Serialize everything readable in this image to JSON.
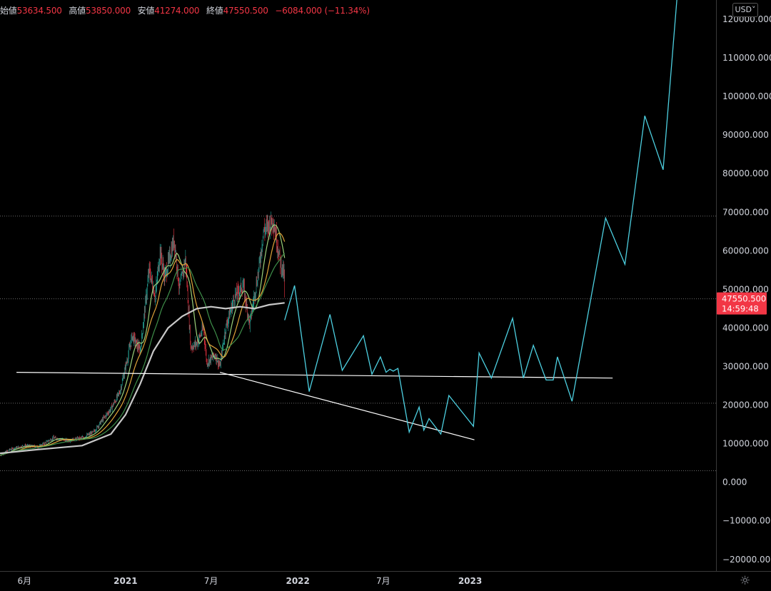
{
  "ohlc": {
    "open_label": "始値",
    "open": "53634.500",
    "high_label": "高値",
    "high": "53850.000",
    "low_label": "安値",
    "low": "41274.000",
    "close_label": "終値",
    "close": "47550.500",
    "change": "−6084.000 (−11.34%)"
  },
  "currency_button": {
    "label": "USD",
    "icon": "chevron-down-icon"
  },
  "settings": {
    "icon": "gear-icon"
  },
  "price_tag": {
    "price": "47550.500",
    "countdown": "14:59:48",
    "color": "#f23645"
  },
  "colors": {
    "projection": "#4dd0e1",
    "ma_white": "#c8c8c8",
    "ma_orange": "#e0a43a",
    "ma_green": "#3f8f4a",
    "ma_light": "#9ad07a",
    "up": "#26a69a",
    "down": "#f23645",
    "background": "#000000"
  },
  "chart_data": {
    "type": "line",
    "title": "",
    "xlabel": "",
    "ylabel": "",
    "y_scale": "linear",
    "ylim": [
      -23000,
      125000
    ],
    "y_ticks": [
      -20000,
      -10000,
      0,
      10000,
      20000,
      30000,
      40000,
      50000,
      60000,
      70000,
      80000,
      90000,
      100000,
      110000,
      120000
    ],
    "y_tick_labels": [
      "−20000.000",
      "−10000.000",
      "0.000",
      "10000.000",
      "20000.000",
      "30000.000",
      "40000.000",
      "50000.000",
      "60000.000",
      "70000.000",
      "80000.000",
      "90000.000",
      "100000.000",
      "110000.000",
      "120000.000"
    ],
    "xlim": [
      "2020-04-10",
      "2024-06-05"
    ],
    "x_ticks": [
      {
        "date": "2020-06-01",
        "label": "6月"
      },
      {
        "date": "2021-01-01",
        "label": "2021"
      },
      {
        "date": "2021-07-01",
        "label": "7月"
      },
      {
        "date": "2022-01-01",
        "label": "2022"
      },
      {
        "date": "2022-07-01",
        "label": "7月"
      },
      {
        "date": "2023-01-01",
        "label": "2023"
      }
    ],
    "horizontal_levels": [
      3000,
      20500,
      47550.5,
      69000
    ],
    "grid": false,
    "series": [
      {
        "kind": "price-history",
        "points": [
          [
            "2020-04-10",
            7000
          ],
          [
            "2020-05-01",
            8500
          ],
          [
            "2020-06-01",
            9500
          ],
          [
            "2020-07-01",
            9200
          ],
          [
            "2020-08-01",
            11500
          ],
          [
            "2020-09-01",
            10800
          ],
          [
            "2020-10-01",
            11500
          ],
          [
            "2020-10-25",
            13000
          ],
          [
            "2020-11-15",
            16500
          ],
          [
            "2020-12-01",
            19000
          ],
          [
            "2020-12-20",
            23500
          ],
          [
            "2021-01-05",
            32000
          ],
          [
            "2021-01-15",
            38000
          ],
          [
            "2021-02-01",
            34000
          ],
          [
            "2021-02-20",
            55000
          ],
          [
            "2021-03-05",
            48000
          ],
          [
            "2021-03-15",
            60000
          ],
          [
            "2021-03-25",
            53000
          ],
          [
            "2021-04-14",
            63000
          ],
          [
            "2021-04-25",
            50000
          ],
          [
            "2021-05-08",
            58000
          ],
          [
            "2021-05-19",
            35000
          ],
          [
            "2021-06-01",
            36000
          ],
          [
            "2021-06-15",
            40000
          ],
          [
            "2021-06-22",
            31000
          ],
          [
            "2021-07-10",
            33000
          ],
          [
            "2021-07-20",
            30000
          ],
          [
            "2021-08-01",
            40000
          ],
          [
            "2021-08-20",
            48000
          ],
          [
            "2021-09-07",
            51000
          ],
          [
            "2021-09-21",
            41000
          ],
          [
            "2021-10-10",
            55000
          ],
          [
            "2021-10-20",
            65000
          ],
          [
            "2021-11-10",
            68000
          ],
          [
            "2021-11-25",
            57000
          ],
          [
            "2021-12-03",
            53634.5
          ],
          [
            "2021-12-04",
            47550.5
          ]
        ]
      },
      {
        "kind": "moving-average-long",
        "color": "#c8c8c8",
        "points": [
          [
            "2020-04-10",
            7500
          ],
          [
            "2020-07-01",
            8500
          ],
          [
            "2020-10-01",
            9500
          ],
          [
            "2020-12-01",
            12500
          ],
          [
            "2021-01-01",
            17500
          ],
          [
            "2021-02-01",
            25500
          ],
          [
            "2021-03-01",
            34000
          ],
          [
            "2021-04-01",
            40000
          ],
          [
            "2021-05-01",
            43000
          ],
          [
            "2021-06-01",
            45000
          ],
          [
            "2021-07-01",
            45500
          ],
          [
            "2021-08-01",
            45000
          ],
          [
            "2021-09-01",
            45500
          ],
          [
            "2021-10-01",
            45000
          ],
          [
            "2021-11-01",
            46000
          ],
          [
            "2021-12-04",
            46500
          ]
        ]
      },
      {
        "kind": "projection",
        "color": "#4dd0e1",
        "points": [
          [
            "2021-12-04",
            42000
          ],
          [
            "2021-12-25",
            51000
          ],
          [
            "2022-01-25",
            23500
          ],
          [
            "2022-03-10",
            43500
          ],
          [
            "2022-04-05",
            29000
          ],
          [
            "2022-05-20",
            38000
          ],
          [
            "2022-06-07",
            28000
          ],
          [
            "2022-06-25",
            32500
          ],
          [
            "2022-07-07",
            28500
          ],
          [
            "2022-07-15",
            29300
          ],
          [
            "2022-07-22",
            28800
          ],
          [
            "2022-08-01",
            29500
          ],
          [
            "2022-08-25",
            13000
          ],
          [
            "2022-09-15",
            19500
          ],
          [
            "2022-09-25",
            13500
          ],
          [
            "2022-10-06",
            16500
          ],
          [
            "2022-10-31",
            12500
          ],
          [
            "2022-11-17",
            22500
          ],
          [
            "2023-01-08",
            14500
          ],
          [
            "2023-01-20",
            33500
          ],
          [
            "2023-02-15",
            27000
          ],
          [
            "2023-04-01",
            42500
          ],
          [
            "2023-04-24",
            27000
          ],
          [
            "2023-05-15",
            35500
          ],
          [
            "2023-06-11",
            26500
          ],
          [
            "2023-06-26",
            26500
          ],
          [
            "2023-07-05",
            32500
          ],
          [
            "2023-08-05",
            21000
          ],
          [
            "2023-10-15",
            68500
          ],
          [
            "2023-11-25",
            56500
          ],
          [
            "2024-01-06",
            95000
          ],
          [
            "2024-02-14",
            81000
          ],
          [
            "2024-03-14",
            125000
          ]
        ]
      },
      {
        "kind": "trendline",
        "color": "#ffffff",
        "points": [
          [
            "2020-05-15",
            28500
          ],
          [
            "2023-10-30",
            27000
          ]
        ]
      },
      {
        "kind": "trendline",
        "color": "#ffffff",
        "points": [
          [
            "2021-07-20",
            28500
          ],
          [
            "2023-01-10",
            11000
          ]
        ]
      }
    ]
  }
}
